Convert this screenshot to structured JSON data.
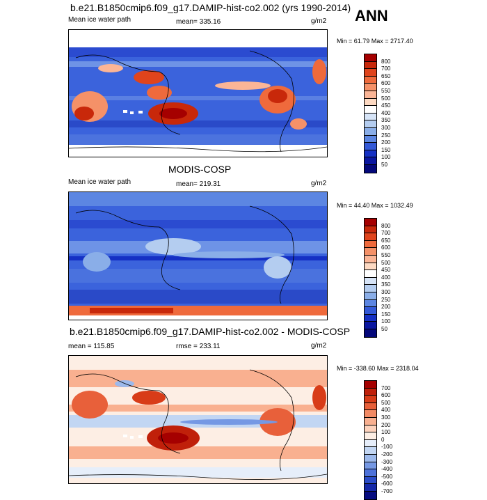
{
  "season": "ANN",
  "panels": [
    {
      "title": "b.e21.B1850cmip6.f09_g17.DAMIP-hist-co2.002 (yrs 1990-2014)",
      "left_label": "Mean ice water path",
      "center_label": "mean= 335.16",
      "right_label": "g/m2",
      "minmax": "Min =  61.79 Max = 2717.40",
      "colorbar_labels": [
        "800",
        "700",
        "650",
        "600",
        "550",
        "500",
        "450",
        "400",
        "350",
        "300",
        "250",
        "200",
        "150",
        "100",
        "50"
      ],
      "colorbar_colors": [
        "#a50000",
        "#c8280a",
        "#e0441c",
        "#ef6a3c",
        "#f59168",
        "#fbb596",
        "#fdd9c2",
        "#ffffff",
        "#d6e4f7",
        "#b4cdf0",
        "#8aaee8",
        "#5c86e2",
        "#3359d8",
        "#1530c4",
        "#0a16a0",
        "#04087a"
      ]
    },
    {
      "title": "MODIS-COSP",
      "left_label": "Mean ice water path",
      "center_label": "mean= 219.31",
      "right_label": "g/m2",
      "minmax": "Min =  44.40 Max = 1032.49",
      "colorbar_labels": [
        "800",
        "700",
        "650",
        "600",
        "550",
        "500",
        "450",
        "400",
        "350",
        "300",
        "250",
        "200",
        "150",
        "100",
        "50"
      ],
      "colorbar_colors": [
        "#a50000",
        "#c8280a",
        "#e0441c",
        "#ef6a3c",
        "#f59168",
        "#fbb596",
        "#fdd9c2",
        "#ffffff",
        "#d6e4f7",
        "#b4cdf0",
        "#8aaee8",
        "#5c86e2",
        "#3359d8",
        "#1530c4",
        "#0a16a0",
        "#04087a"
      ]
    },
    {
      "title": "b.e21.B1850cmip6.f09_g17.DAMIP-hist-co2.002 - MODIS-COSP",
      "left_label": "mean = 115.85",
      "center_label": "rmse = 233.11",
      "right_label": "g/m2",
      "minmax": "Min = -338.60 Max = 2318.04",
      "colorbar_labels": [
        "700",
        "600",
        "500",
        "400",
        "300",
        "200",
        "100",
        "0",
        "-100",
        "-200",
        "-300",
        "-400",
        "-500",
        "-600",
        "-700"
      ],
      "colorbar_colors": [
        "#a50000",
        "#c0200a",
        "#d83c18",
        "#e8603a",
        "#f28a64",
        "#f9b090",
        "#fdd2bc",
        "#fdeee4",
        "#e6eefa",
        "#c2d6f3",
        "#9cb9ec",
        "#7598e4",
        "#4d72da",
        "#2a4cc8",
        "#1428a8",
        "#060c80"
      ]
    }
  ]
}
